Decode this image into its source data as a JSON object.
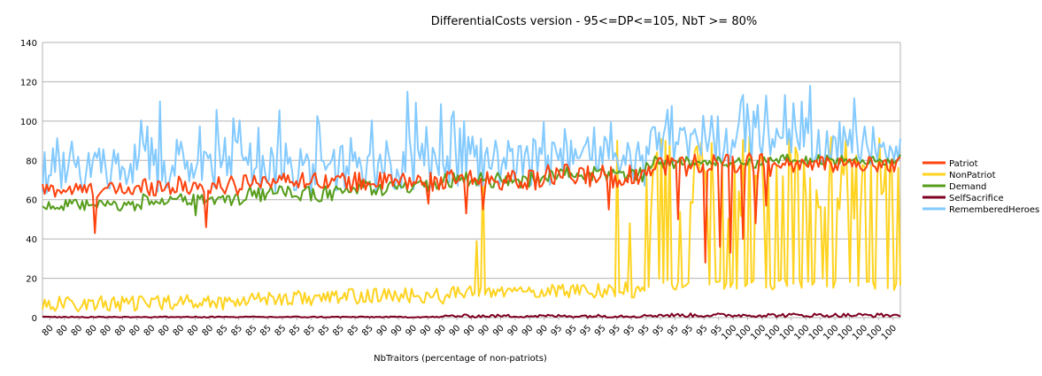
{
  "chart_data": {
    "type": "line",
    "title": "DifferentialCosts version - 95<=DP<=105, NbT >= 80%",
    "xlabel": "NbTraitors (percentage of non-patriots)",
    "ylabel": "",
    "ylim": [
      0,
      140
    ],
    "yticks": [
      0,
      20,
      40,
      60,
      80,
      100,
      120,
      140
    ],
    "grid": true,
    "legend_position": "right",
    "x_tick_labels": [
      "80",
      "80",
      "80",
      "80",
      "80",
      "80",
      "80",
      "80",
      "80",
      "80",
      "80",
      "80",
      "85",
      "85",
      "85",
      "85",
      "85",
      "85",
      "85",
      "85",
      "85",
      "85",
      "85",
      "90",
      "90",
      "90",
      "90",
      "90",
      "90",
      "90",
      "90",
      "90",
      "90",
      "90",
      "90",
      "95",
      "95",
      "95",
      "95",
      "95",
      "95",
      "95",
      "95",
      "95",
      "95",
      "95",
      "95",
      "100",
      "100",
      "100",
      "100",
      "100",
      "100",
      "100",
      "100",
      "100",
      "100",
      "100",
      "100"
    ],
    "n_points": 410,
    "series": [
      {
        "name": "Patriot",
        "color": "#ff420e",
        "segments": [
          {
            "n": 48,
            "mean": 65,
            "amp": 4,
            "dips": [
              [
                25,
                43
              ]
            ]
          },
          {
            "n": 48,
            "mean": 67,
            "amp": 5,
            "dips": [
              [
                30,
                46
              ]
            ]
          },
          {
            "n": 48,
            "mean": 70,
            "amp": 4,
            "dips": []
          },
          {
            "n": 48,
            "mean": 69,
            "amp": 5,
            "dips": [
              [
                40,
                58
              ]
            ]
          },
          {
            "n": 48,
            "mean": 70,
            "amp": 5,
            "dips": [
              [
                10,
                53
              ],
              [
                18,
                55
              ]
            ]
          },
          {
            "n": 48,
            "mean": 72,
            "amp": 6,
            "dips": [
              [
                30,
                55
              ]
            ]
          },
          {
            "n": 61,
            "mean": 78,
            "amp": 6,
            "dips": [
              [
                15,
                50
              ],
              [
                28,
                28
              ],
              [
                35,
                36
              ],
              [
                40,
                33
              ],
              [
                46,
                40
              ],
              [
                52,
                48
              ],
              [
                57,
                57
              ]
            ]
          },
          {
            "n": 61,
            "mean": 78,
            "amp": 4,
            "dips": []
          }
        ]
      },
      {
        "name": "NonPatriot",
        "color": "#ffd320",
        "segments": [
          {
            "n": 48,
            "mean": 7,
            "amp": 4,
            "dips": []
          },
          {
            "n": 48,
            "mean": 8,
            "amp": 4,
            "dips": []
          },
          {
            "n": 48,
            "mean": 10,
            "amp": 4,
            "dips": []
          },
          {
            "n": 48,
            "mean": 11,
            "amp": 4,
            "dips": []
          },
          {
            "n": 48,
            "mean": 13,
            "amp": 3,
            "dips": [
              [
                15,
                39
              ],
              [
                18,
                75
              ]
            ]
          },
          {
            "n": 48,
            "mean": 14,
            "amp": 4,
            "dips": [
              [
                34,
                90
              ],
              [
                40,
                48
              ]
            ]
          },
          {
            "n": 61,
            "mean": 35,
            "amp": 40,
            "dips": []
          },
          {
            "n": 61,
            "mean": 40,
            "amp": 40,
            "dips": []
          }
        ]
      },
      {
        "name": "Demand",
        "color": "#579d1c",
        "segments": [
          {
            "n": 48,
            "mean": 57,
            "amp": 3,
            "dips": []
          },
          {
            "n": 48,
            "mean": 60,
            "amp": 3,
            "dips": [
              [
                25,
                52
              ]
            ]
          },
          {
            "n": 48,
            "mean": 63,
            "amp": 4,
            "dips": []
          },
          {
            "n": 48,
            "mean": 66,
            "amp": 4,
            "dips": []
          },
          {
            "n": 48,
            "mean": 70,
            "amp": 4,
            "dips": []
          },
          {
            "n": 48,
            "mean": 73,
            "amp": 4,
            "dips": []
          },
          {
            "n": 61,
            "mean": 79,
            "amp": 3,
            "dips": []
          },
          {
            "n": 61,
            "mean": 80,
            "amp": 3,
            "dips": []
          }
        ]
      },
      {
        "name": "SelfSacrifice",
        "color": "#7e0021",
        "segments": [
          {
            "n": 48,
            "mean": 0.3,
            "amp": 0.3,
            "dips": []
          },
          {
            "n": 48,
            "mean": 0.3,
            "amp": 0.3,
            "dips": []
          },
          {
            "n": 48,
            "mean": 0.3,
            "amp": 0.3,
            "dips": []
          },
          {
            "n": 48,
            "mean": 0.3,
            "amp": 0.3,
            "dips": []
          },
          {
            "n": 48,
            "mean": 0.8,
            "amp": 0.8,
            "dips": []
          },
          {
            "n": 48,
            "mean": 0.8,
            "amp": 0.8,
            "dips": []
          },
          {
            "n": 61,
            "mean": 1.2,
            "amp": 1.0,
            "dips": []
          },
          {
            "n": 61,
            "mean": 1.2,
            "amp": 1.0,
            "dips": []
          }
        ]
      },
      {
        "name": "RememberedHeroes",
        "color": "#83caff",
        "segments": [
          {
            "n": 48,
            "mean": 75,
            "amp": 12,
            "dips": []
          },
          {
            "n": 48,
            "mean": 78,
            "amp": 14,
            "dips": [
              [
                8,
                110
              ]
            ]
          },
          {
            "n": 48,
            "mean": 76,
            "amp": 13,
            "dips": []
          },
          {
            "n": 48,
            "mean": 78,
            "amp": 14,
            "dips": [
              [
                30,
                115
              ]
            ]
          },
          {
            "n": 48,
            "mean": 80,
            "amp": 13,
            "dips": []
          },
          {
            "n": 48,
            "mean": 80,
            "amp": 13,
            "dips": []
          },
          {
            "n": 61,
            "mean": 88,
            "amp": 10,
            "dips": [
              [
                45,
                110
              ]
            ]
          },
          {
            "n": 61,
            "mean": 88,
            "amp": 10,
            "dips": []
          }
        ]
      }
    ]
  }
}
